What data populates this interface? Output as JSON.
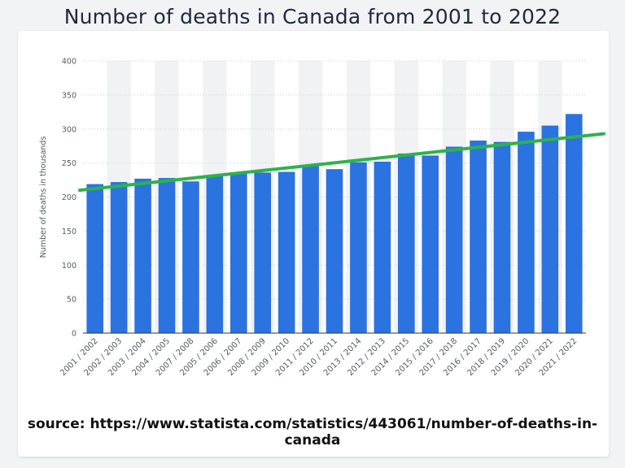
{
  "page": {
    "title": "Number of deaths in Canada from 2001 to 2022",
    "source": "source: https://www.statista.com/statistics/443061/number-of-deaths-in-canada"
  },
  "colors": {
    "bar": "#2a73e0",
    "trend": "#2db34a",
    "grid": "#d7d9dd",
    "band": "#f1f2f4",
    "tick_text": "#555b66"
  },
  "chart_data": {
    "type": "bar",
    "title": "Number of deaths in Canada from 2001 to 2022",
    "xlabel": "",
    "ylabel": "Number of deaths in thousands",
    "ylim": [
      0,
      400
    ],
    "yticks": [
      0,
      50,
      100,
      150,
      200,
      250,
      300,
      350,
      400
    ],
    "grid": true,
    "categories": [
      "2001 / 2002",
      "2002 / 2003",
      "2003 / 2004",
      "2004 / 2005",
      "2007 / 2008",
      "2005 / 2006",
      "2006 / 2007",
      "2008 / 2009",
      "2009 / 2010",
      "2011 / 2012",
      "2010 / 2011",
      "2013 / 2014",
      "2012 / 2013",
      "2014 / 2015",
      "2015 / 2016",
      "2017 / 2018",
      "2016 / 2017",
      "2018 / 2019",
      "2019 / 2020",
      "2020 / 2021",
      "2021 / 2022"
    ],
    "values": [
      219,
      222,
      227,
      228,
      223,
      232,
      236,
      236,
      237,
      247,
      241,
      251,
      252,
      264,
      261,
      274,
      283,
      281,
      296,
      305,
      322
    ],
    "trendline": {
      "type": "linear",
      "start_value": 210,
      "end_value": 293
    }
  }
}
